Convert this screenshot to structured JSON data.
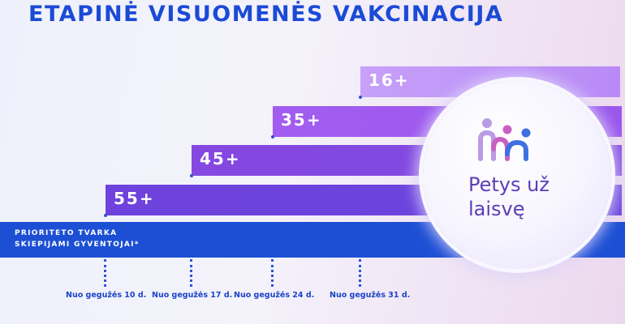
{
  "title": "ETAPINĖ VISUOMENĖS VAKCINACIJA",
  "age_groups": [
    {
      "label": "16+"
    },
    {
      "label": "35+"
    },
    {
      "label": "45+"
    },
    {
      "label": "55+"
    }
  ],
  "priority": {
    "line1": "PRIORITETO TVARKA",
    "line2": "SKIEPIJAMI GYVENTOJAI*"
  },
  "dates": [
    "Nuo gegužės 10 d.",
    "Nuo gegužės 17 d.",
    "Nuo gegužės 24 d.",
    "Nuo gegužės 31 d."
  ],
  "logo": {
    "line1": "Petys už",
    "line2": "laisvę",
    "icon": "three-people-icon"
  },
  "colors": {
    "title": "#1b4ad6",
    "priority_bar": "#1c4fd4",
    "bar_16": "#c6a0f9",
    "bar_35": "#a25cf0",
    "bar_45": "#8548e0",
    "bar_55": "#6e42dc",
    "logo_text": "#5a3eb7"
  }
}
